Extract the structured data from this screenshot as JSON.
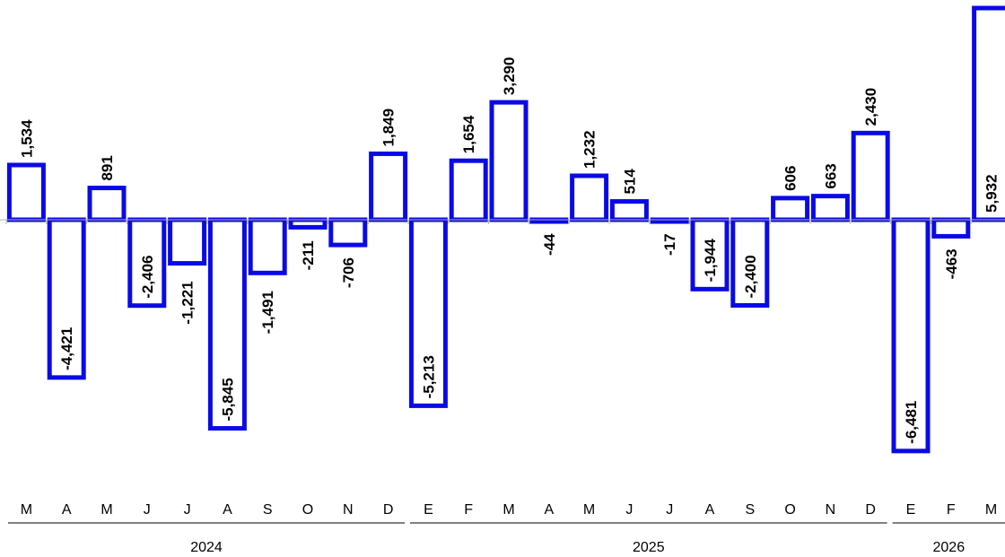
{
  "chart_data": {
    "type": "bar",
    "title": "",
    "xlabel": "",
    "ylabel": "",
    "categories": [
      "M",
      "A",
      "M",
      "J",
      "J",
      "A",
      "S",
      "O",
      "N",
      "D",
      "E",
      "F",
      "M",
      "A",
      "M",
      "J",
      "J",
      "A",
      "S",
      "O",
      "N",
      "D",
      "E",
      "F",
      "M"
    ],
    "years": [
      {
        "label": "2024",
        "start": 0,
        "end": 9
      },
      {
        "label": "2025",
        "start": 10,
        "end": 21
      },
      {
        "label": "2026",
        "start": 22,
        "end": 24
      }
    ],
    "values": [
      1534,
      -4421,
      891,
      -2406,
      -1221,
      -5845,
      -1491,
      -211,
      -706,
      1849,
      -5213,
      1654,
      3290,
      -44,
      1232,
      514,
      -17,
      -1944,
      -2400,
      606,
      663,
      2430,
      -6481,
      -463,
      5932
    ],
    "labels": [
      "1,534",
      "-4,421",
      "891",
      "-2,406",
      "-1,221",
      "-5,845",
      "-1,491",
      "-211",
      "-706",
      "1,849",
      "-5,213",
      "1,654",
      "3,290",
      "-44",
      "1,232",
      "514",
      "-17",
      "-1,944",
      "-2,400",
      "606",
      "663",
      "2,430",
      "-6,481",
      "-463",
      "5,932"
    ],
    "ylim": [
      -6600,
      6100
    ],
    "colors": {
      "bar_stroke": "#0a0ae6",
      "bar_fill": "#ffffff"
    },
    "grid": false,
    "legend": "none"
  }
}
